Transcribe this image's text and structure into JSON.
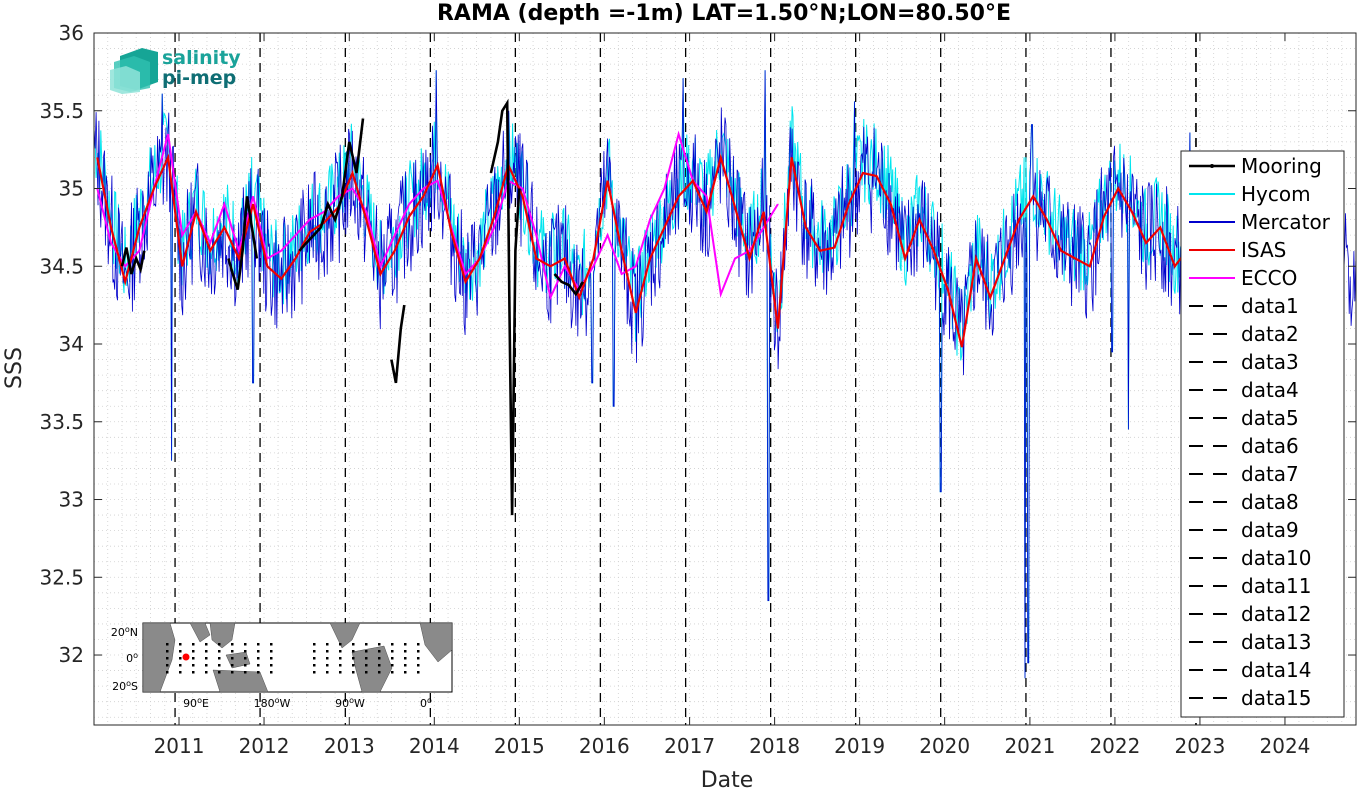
{
  "chart_data": {
    "type": "line",
    "title": "RAMA (depth =-1m) LAT=1.50°N;LON=80.50°E",
    "xlabel": "Date",
    "ylabel": "SSS",
    "xlim": [
      "2010-01-01",
      "2024-11-01"
    ],
    "ylim": [
      31.55,
      36
    ],
    "x_ticks": [
      "2011",
      "2012",
      "2013",
      "2014",
      "2015",
      "2016",
      "2017",
      "2018",
      "2019",
      "2020",
      "2021",
      "2022",
      "2023",
      "2024"
    ],
    "y_ticks": [
      "36",
      "35.5",
      "35",
      "34.5",
      "34",
      "33.5",
      "33",
      "32.5",
      "32"
    ],
    "grid": "minor dotted",
    "legend_position": "right",
    "series": [
      {
        "name": "Mooring",
        "color": "#000000",
        "segments": [
          {
            "x": [
              "2010-05-01",
              "2010-05-20",
              "2010-06-10",
              "2010-07-01",
              "2010-07-20",
              "2010-08-05"
            ],
            "y": [
              34.5,
              34.62,
              34.45,
              34.55,
              34.48,
              34.6
            ]
          },
          {
            "x": [
              "2011-08-01",
              "2011-08-20",
              "2011-09-10",
              "2011-10-01",
              "2011-10-20",
              "2011-11-10",
              "2011-12-01"
            ],
            "y": [
              34.55,
              34.45,
              34.35,
              34.6,
              34.95,
              34.75,
              34.55
            ]
          },
          {
            "x": [
              "2012-06-01",
              "2012-07-01",
              "2012-08-01",
              "2012-09-01",
              "2012-10-01",
              "2012-11-01",
              "2012-12-01",
              "2013-01-01",
              "2013-02-01",
              "2013-03-01"
            ],
            "y": [
              34.6,
              34.65,
              34.7,
              34.75,
              34.9,
              34.8,
              34.95,
              35.3,
              35.1,
              35.45
            ]
          },
          {
            "x": [
              "2013-07-01",
              "2013-07-20",
              "2013-08-10",
              "2013-08-25"
            ],
            "y": [
              33.9,
              33.75,
              34.1,
              34.25
            ]
          },
          {
            "x": [
              "2014-09-01",
              "2014-10-01",
              "2014-10-20",
              "2014-11-10",
              "2014-11-20",
              "2014-12-01",
              "2014-12-15",
              "2015-01-01"
            ],
            "y": [
              35.1,
              35.3,
              35.5,
              35.55,
              34.2,
              32.9,
              34.6,
              35.0
            ]
          },
          {
            "x": [
              "2015-06-01",
              "2015-07-01",
              "2015-08-01",
              "2015-09-01",
              "2015-10-01"
            ],
            "y": [
              34.45,
              34.4,
              34.38,
              34.32,
              34.4
            ]
          }
        ]
      },
      {
        "name": "Hycom",
        "color": "#00e5ee"
      },
      {
        "name": "Mercator",
        "color": "#0000cc"
      },
      {
        "name": "ISAS",
        "color": "#ee0000",
        "x": [
          "2010-01-15",
          "2010-03-15",
          "2010-05-15",
          "2010-07-15",
          "2010-09-15",
          "2010-11-15",
          "2011-01-15",
          "2011-03-15",
          "2011-05-15",
          "2011-07-15",
          "2011-09-15",
          "2011-11-15",
          "2012-01-15",
          "2012-03-15",
          "2012-05-15",
          "2012-07-15",
          "2012-09-15",
          "2012-11-15",
          "2013-01-15",
          "2013-03-15",
          "2013-05-15",
          "2013-07-15",
          "2013-09-15",
          "2013-11-15",
          "2014-01-15",
          "2014-03-15",
          "2014-05-15",
          "2014-07-15",
          "2014-09-15",
          "2014-11-15",
          "2015-01-15",
          "2015-03-15",
          "2015-05-15",
          "2015-07-15",
          "2015-09-15",
          "2015-11-15",
          "2016-01-15",
          "2016-03-15",
          "2016-05-15",
          "2016-07-15",
          "2016-09-15",
          "2016-11-15",
          "2017-01-15",
          "2017-03-15",
          "2017-05-15",
          "2017-07-15",
          "2017-09-15",
          "2017-11-15",
          "2018-01-15",
          "2018-03-15",
          "2018-05-15",
          "2018-07-15",
          "2018-09-15",
          "2018-11-15",
          "2019-01-15",
          "2019-03-15",
          "2019-05-15",
          "2019-07-15",
          "2019-09-15",
          "2019-11-15",
          "2020-01-15",
          "2020-03-15",
          "2020-05-15",
          "2020-07-15",
          "2020-09-15",
          "2020-11-15",
          "2021-01-15",
          "2021-03-15",
          "2021-05-15",
          "2021-07-15",
          "2021-09-15",
          "2021-11-15",
          "2022-01-15",
          "2022-03-15",
          "2022-05-15",
          "2022-07-15",
          "2022-09-15",
          "2022-11-15"
        ],
        "y": [
          35.2,
          34.75,
          34.4,
          34.75,
          35.0,
          35.2,
          34.5,
          34.85,
          34.6,
          34.75,
          34.55,
          34.9,
          34.5,
          34.42,
          34.55,
          34.72,
          34.78,
          34.88,
          35.1,
          34.8,
          34.45,
          34.6,
          34.82,
          34.95,
          35.15,
          34.72,
          34.4,
          34.55,
          34.82,
          35.15,
          34.95,
          34.55,
          34.5,
          34.55,
          34.3,
          34.55,
          35.05,
          34.6,
          34.2,
          34.55,
          34.75,
          34.95,
          35.05,
          34.85,
          35.2,
          34.88,
          34.55,
          34.85,
          34.1,
          35.2,
          34.75,
          34.6,
          34.62,
          34.9,
          35.1,
          35.08,
          34.9,
          34.55,
          34.8,
          34.6,
          34.35,
          33.98,
          34.55,
          34.3,
          34.55,
          34.8,
          34.95,
          34.8,
          34.6,
          34.55,
          34.5,
          34.82,
          35.0,
          34.85,
          34.65,
          34.75,
          34.5,
          34.62
        ]
      },
      {
        "name": "ECCO",
        "color": "#ff00ff",
        "x": [
          "2010-01-15",
          "2010-03-15",
          "2010-05-15",
          "2010-07-15",
          "2010-09-15",
          "2010-11-15",
          "2011-01-15",
          "2011-03-15",
          "2011-05-15",
          "2011-07-15",
          "2011-09-15",
          "2011-11-15",
          "2012-01-15",
          "2012-03-15",
          "2012-05-15",
          "2012-07-15",
          "2012-09-15",
          "2012-11-15",
          "2013-01-15",
          "2013-03-15",
          "2013-05-15",
          "2013-07-15",
          "2013-09-15",
          "2013-11-15",
          "2014-01-15",
          "2014-03-15",
          "2014-05-15",
          "2014-07-15",
          "2014-09-15",
          "2014-11-15",
          "2015-01-15",
          "2015-03-15",
          "2015-05-15",
          "2015-07-15",
          "2015-09-15",
          "2015-11-15",
          "2016-01-15",
          "2016-03-15",
          "2016-05-15",
          "2016-07-15",
          "2016-09-15",
          "2016-11-15",
          "2017-01-15",
          "2017-03-15",
          "2017-05-15",
          "2017-07-15",
          "2017-09-15",
          "2017-11-15",
          "2018-01-15"
        ],
        "y": [
          35.0,
          34.65,
          34.5,
          34.6,
          35.0,
          35.35,
          34.7,
          34.85,
          34.65,
          34.9,
          34.6,
          34.95,
          34.55,
          34.6,
          34.7,
          34.8,
          34.85,
          34.95,
          35.0,
          34.85,
          34.5,
          34.7,
          34.9,
          35.0,
          35.05,
          34.75,
          34.45,
          34.55,
          34.75,
          35.05,
          35.0,
          34.7,
          34.3,
          34.5,
          34.35,
          34.5,
          34.7,
          34.45,
          34.5,
          34.8,
          35.0,
          35.35,
          35.05,
          34.95,
          34.32,
          34.55,
          34.6,
          34.75,
          34.9
        ]
      }
    ],
    "vertical_dashed_lines": [
      {
        "name": "data1",
        "x": "2010-12-15"
      },
      {
        "name": "data2",
        "x": "2011-12-15"
      },
      {
        "name": "data3",
        "x": "2012-12-15"
      },
      {
        "name": "data4",
        "x": "2013-12-15"
      },
      {
        "name": "data5",
        "x": "2014-12-15"
      },
      {
        "name": "data6",
        "x": "2015-12-15"
      },
      {
        "name": "data7",
        "x": "2016-12-15"
      },
      {
        "name": "data8",
        "x": "2017-12-15"
      },
      {
        "name": "data9",
        "x": "2018-12-15"
      },
      {
        "name": "data10",
        "x": "2019-12-15"
      },
      {
        "name": "data11",
        "x": "2020-12-15"
      },
      {
        "name": "data12",
        "x": "2021-12-15"
      },
      {
        "name": "data13",
        "x": "2022-12-15"
      },
      {
        "name": "data14",
        "x": "2022-12-15"
      },
      {
        "name": "data15",
        "x": "2022-12-15"
      }
    ]
  },
  "logo": {
    "line1": "salinity",
    "line2": "pi-mep",
    "color_teal": "#1aa39a",
    "color_dark": "#0f6e74"
  },
  "inset_map": {
    "ylabels": [
      {
        "deg": "20",
        "sup": "o",
        "hem": "N"
      },
      {
        "deg": "0",
        "sup": "o",
        "hem": ""
      },
      {
        "deg": "20",
        "sup": "o",
        "hem": "S"
      }
    ],
    "xlabels": [
      {
        "deg": "90",
        "sup": "o",
        "hem": "E"
      },
      {
        "deg": "180",
        "sup": "o",
        "hem": "W"
      },
      {
        "deg": "90",
        "sup": "o",
        "hem": "W"
      },
      {
        "deg": "0",
        "sup": "o",
        "hem": ""
      }
    ],
    "ocean_color": "#ffffff",
    "land_color": "#8a8a8a",
    "marker_color": "#ff0000"
  }
}
